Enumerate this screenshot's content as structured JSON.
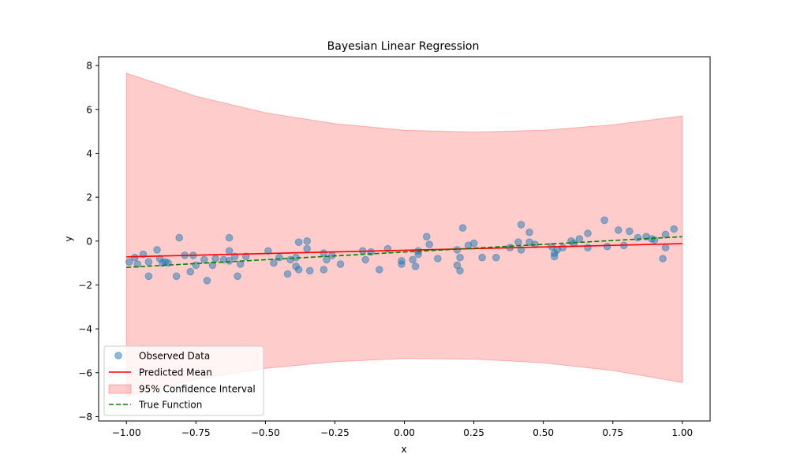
{
  "chart_data": {
    "type": "scatter",
    "title": "Bayesian Linear Regression",
    "xlabel": "x",
    "ylabel": "y",
    "xlim": [
      -1.1,
      1.1
    ],
    "ylim": [
      -8.2,
      8.4
    ],
    "xticks": [
      -1.0,
      -0.75,
      -0.5,
      -0.25,
      0.0,
      0.25,
      0.5,
      0.75,
      1.0
    ],
    "xtick_labels": [
      "−1.00",
      "−0.75",
      "−0.50",
      "−0.25",
      "0.00",
      "0.25",
      "0.50",
      "0.75",
      "1.00"
    ],
    "yticks": [
      -8,
      -6,
      -4,
      -2,
      0,
      2,
      4,
      6,
      8
    ],
    "ytick_labels": [
      "−8",
      "−6",
      "−4",
      "−2",
      "0",
      "2",
      "4",
      "6",
      "8"
    ],
    "grid": false,
    "legend_position": "lower-left",
    "series": [
      {
        "name": "Observed Data",
        "kind": "scatter",
        "color": "#1f77b4",
        "points": [
          [
            -0.99,
            -0.95
          ],
          [
            -0.97,
            -0.75
          ],
          [
            -0.96,
            -1.05
          ],
          [
            -0.94,
            -0.6
          ],
          [
            -0.92,
            -1.6
          ],
          [
            -0.92,
            -0.95
          ],
          [
            -0.89,
            -0.4
          ],
          [
            -0.88,
            -0.8
          ],
          [
            -0.87,
            -1.0
          ],
          [
            -0.86,
            -0.95
          ],
          [
            -0.85,
            -1.0
          ],
          [
            -0.82,
            -1.6
          ],
          [
            -0.81,
            0.15
          ],
          [
            -0.79,
            -0.65
          ],
          [
            -0.77,
            -1.4
          ],
          [
            -0.76,
            -0.65
          ],
          [
            -0.75,
            -1.1
          ],
          [
            -0.72,
            -0.85
          ],
          [
            -0.71,
            -1.8
          ],
          [
            -0.69,
            -1.1
          ],
          [
            -0.68,
            -0.8
          ],
          [
            -0.65,
            -0.85
          ],
          [
            -0.63,
            -0.9
          ],
          [
            -0.63,
            -0.45
          ],
          [
            -0.63,
            0.15
          ],
          [
            -0.61,
            -0.7
          ],
          [
            -0.6,
            -1.6
          ],
          [
            -0.59,
            -1.05
          ],
          [
            -0.57,
            -0.7
          ],
          [
            -0.49,
            -0.45
          ],
          [
            -0.47,
            -1.0
          ],
          [
            -0.45,
            -0.75
          ],
          [
            -0.42,
            -1.5
          ],
          [
            -0.41,
            -0.85
          ],
          [
            -0.39,
            -0.75
          ],
          [
            -0.39,
            -1.15
          ],
          [
            -0.38,
            -1.3
          ],
          [
            -0.38,
            -0.05
          ],
          [
            -0.35,
            0.0
          ],
          [
            -0.35,
            -0.35
          ],
          [
            -0.34,
            -1.35
          ],
          [
            -0.29,
            -1.3
          ],
          [
            -0.29,
            -0.55
          ],
          [
            -0.28,
            -0.85
          ],
          [
            -0.26,
            -0.65
          ],
          [
            -0.23,
            -1.05
          ],
          [
            -0.15,
            -0.45
          ],
          [
            -0.14,
            -0.85
          ],
          [
            -0.12,
            -0.5
          ],
          [
            -0.09,
            -1.3
          ],
          [
            -0.06,
            -0.35
          ],
          [
            -0.01,
            -0.9
          ],
          [
            -0.01,
            -1.05
          ],
          [
            0.03,
            -0.85
          ],
          [
            0.04,
            -1.15
          ],
          [
            0.05,
            -0.6
          ],
          [
            0.05,
            -0.45
          ],
          [
            0.08,
            0.2
          ],
          [
            0.09,
            -0.15
          ],
          [
            0.12,
            -0.8
          ],
          [
            0.19,
            -0.4
          ],
          [
            0.19,
            -1.1
          ],
          [
            0.2,
            -1.35
          ],
          [
            0.2,
            -0.75
          ],
          [
            0.21,
            0.6
          ],
          [
            0.23,
            -0.2
          ],
          [
            0.25,
            -0.1
          ],
          [
            0.28,
            -0.75
          ],
          [
            0.33,
            -0.75
          ],
          [
            0.38,
            -0.3
          ],
          [
            0.41,
            -0.05
          ],
          [
            0.42,
            -0.4
          ],
          [
            0.42,
            0.75
          ],
          [
            0.45,
            0.4
          ],
          [
            0.45,
            -0.05
          ],
          [
            0.47,
            -0.15
          ],
          [
            0.53,
            -0.25
          ],
          [
            0.54,
            -0.55
          ],
          [
            0.54,
            -0.7
          ],
          [
            0.55,
            -0.4
          ],
          [
            0.57,
            -0.3
          ],
          [
            0.6,
            0.0
          ],
          [
            0.61,
            -0.1
          ],
          [
            0.63,
            0.1
          ],
          [
            0.66,
            0.35
          ],
          [
            0.66,
            -0.3
          ],
          [
            0.72,
            0.95
          ],
          [
            0.73,
            -0.25
          ],
          [
            0.77,
            0.5
          ],
          [
            0.79,
            -0.2
          ],
          [
            0.81,
            0.45
          ],
          [
            0.84,
            0.15
          ],
          [
            0.87,
            0.2
          ],
          [
            0.89,
            0.1
          ],
          [
            0.9,
            0.05
          ],
          [
            0.93,
            -0.8
          ],
          [
            0.94,
            -0.3
          ],
          [
            0.94,
            0.3
          ],
          [
            0.97,
            0.55
          ]
        ]
      },
      {
        "name": "Predicted Mean",
        "kind": "line",
        "color": "#ff0000",
        "dash": "solid",
        "x": [
          -1.0,
          1.0
        ],
        "y": [
          -0.72,
          -0.12
        ]
      },
      {
        "name": "95% Confidence Interval",
        "kind": "band",
        "color": "#ff0000",
        "x": [
          -1.0,
          -0.75,
          -0.5,
          -0.25,
          0.0,
          0.25,
          0.5,
          0.75,
          1.0
        ],
        "upper": [
          7.65,
          6.6,
          5.85,
          5.35,
          5.05,
          4.97,
          5.05,
          5.3,
          5.7
        ],
        "lower": [
          -7.1,
          -6.3,
          -5.8,
          -5.5,
          -5.35,
          -5.38,
          -5.55,
          -5.9,
          -6.45
        ]
      },
      {
        "name": "True Function",
        "kind": "line",
        "color": "#008000",
        "dash": "dashed",
        "x": [
          -1.0,
          1.0
        ],
        "y": [
          -1.2,
          0.2
        ]
      }
    ]
  }
}
